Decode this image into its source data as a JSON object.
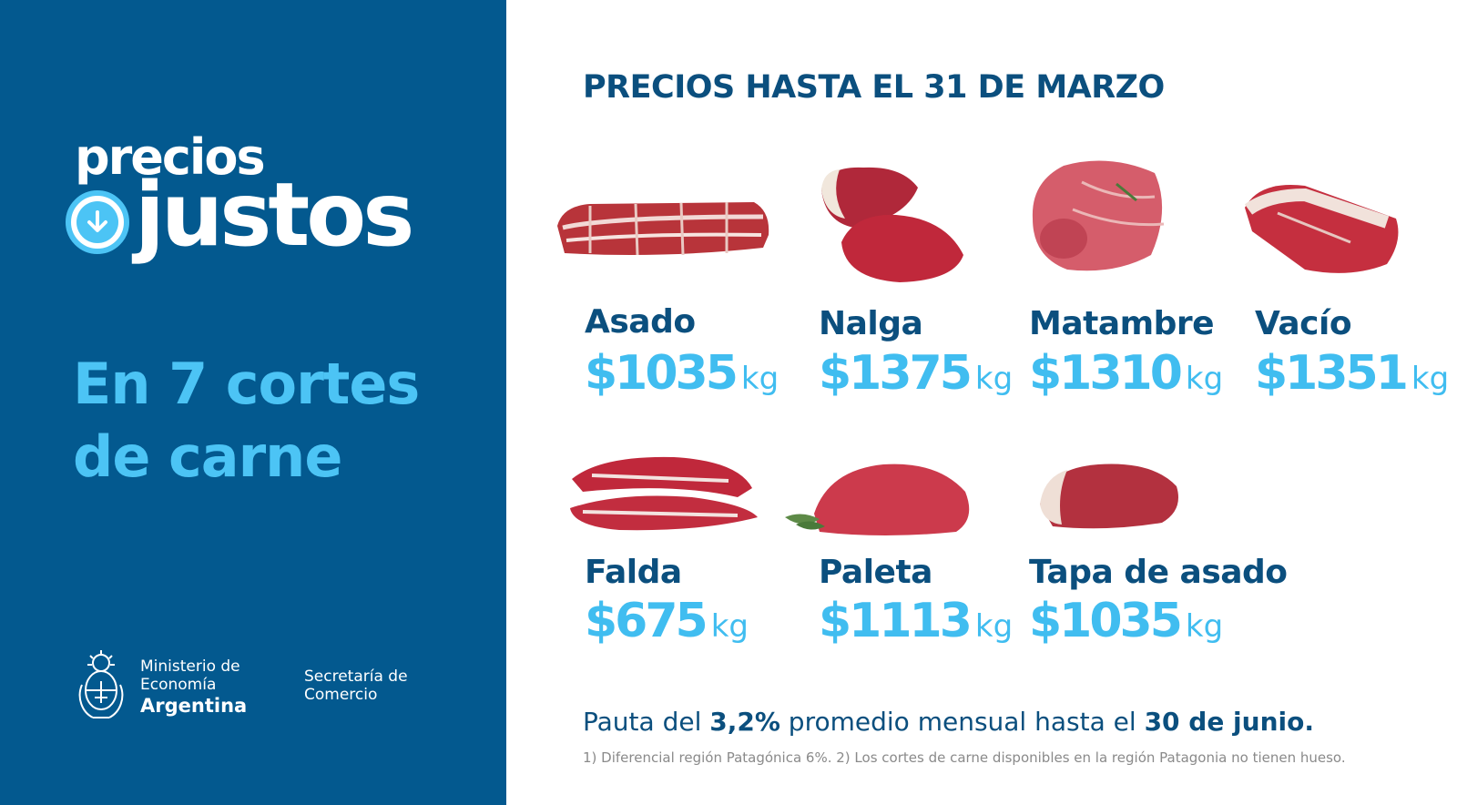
{
  "brand": {
    "line1": "precios",
    "line2": "justos"
  },
  "headline": {
    "line1": "En 7 cortes",
    "line2": "de carne"
  },
  "institution": {
    "ministry_line1": "Ministerio de",
    "ministry_line2": "Economía",
    "ministry_line3": "Argentina",
    "secretary_line1": "Secretaría de",
    "secretary_line2": "Comercio"
  },
  "title": "PRECIOS HASTA EL 31 DE MARZO",
  "cuts": [
    {
      "name": "Asado",
      "price": "$1035",
      "unit": "kg"
    },
    {
      "name": "Nalga",
      "price": "$1375",
      "unit": "kg"
    },
    {
      "name": "Matambre",
      "price": "$1310",
      "unit": "kg"
    },
    {
      "name": "Vacío",
      "price": "$1351",
      "unit": "kg"
    },
    {
      "name": "Falda",
      "price": "$675",
      "unit": "kg"
    },
    {
      "name": "Paleta",
      "price": "$1113",
      "unit": "kg"
    },
    {
      "name": "Tapa de asado",
      "price": "$1035",
      "unit": "kg"
    }
  ],
  "note": {
    "prefix": "Pauta del ",
    "rate": "3,2%",
    "middle": " promedio mensual hasta el ",
    "date": "30 de junio."
  },
  "footnote": "1) Diferencial región Patagónica 6%. 2) Los cortes de carne disponibles en la región Patagonia no tienen hueso.",
  "colors": {
    "panel": "#03598f",
    "accent": "#4cc4f5",
    "dark_text": "#0b4f7e",
    "price": "#40bdf0"
  }
}
